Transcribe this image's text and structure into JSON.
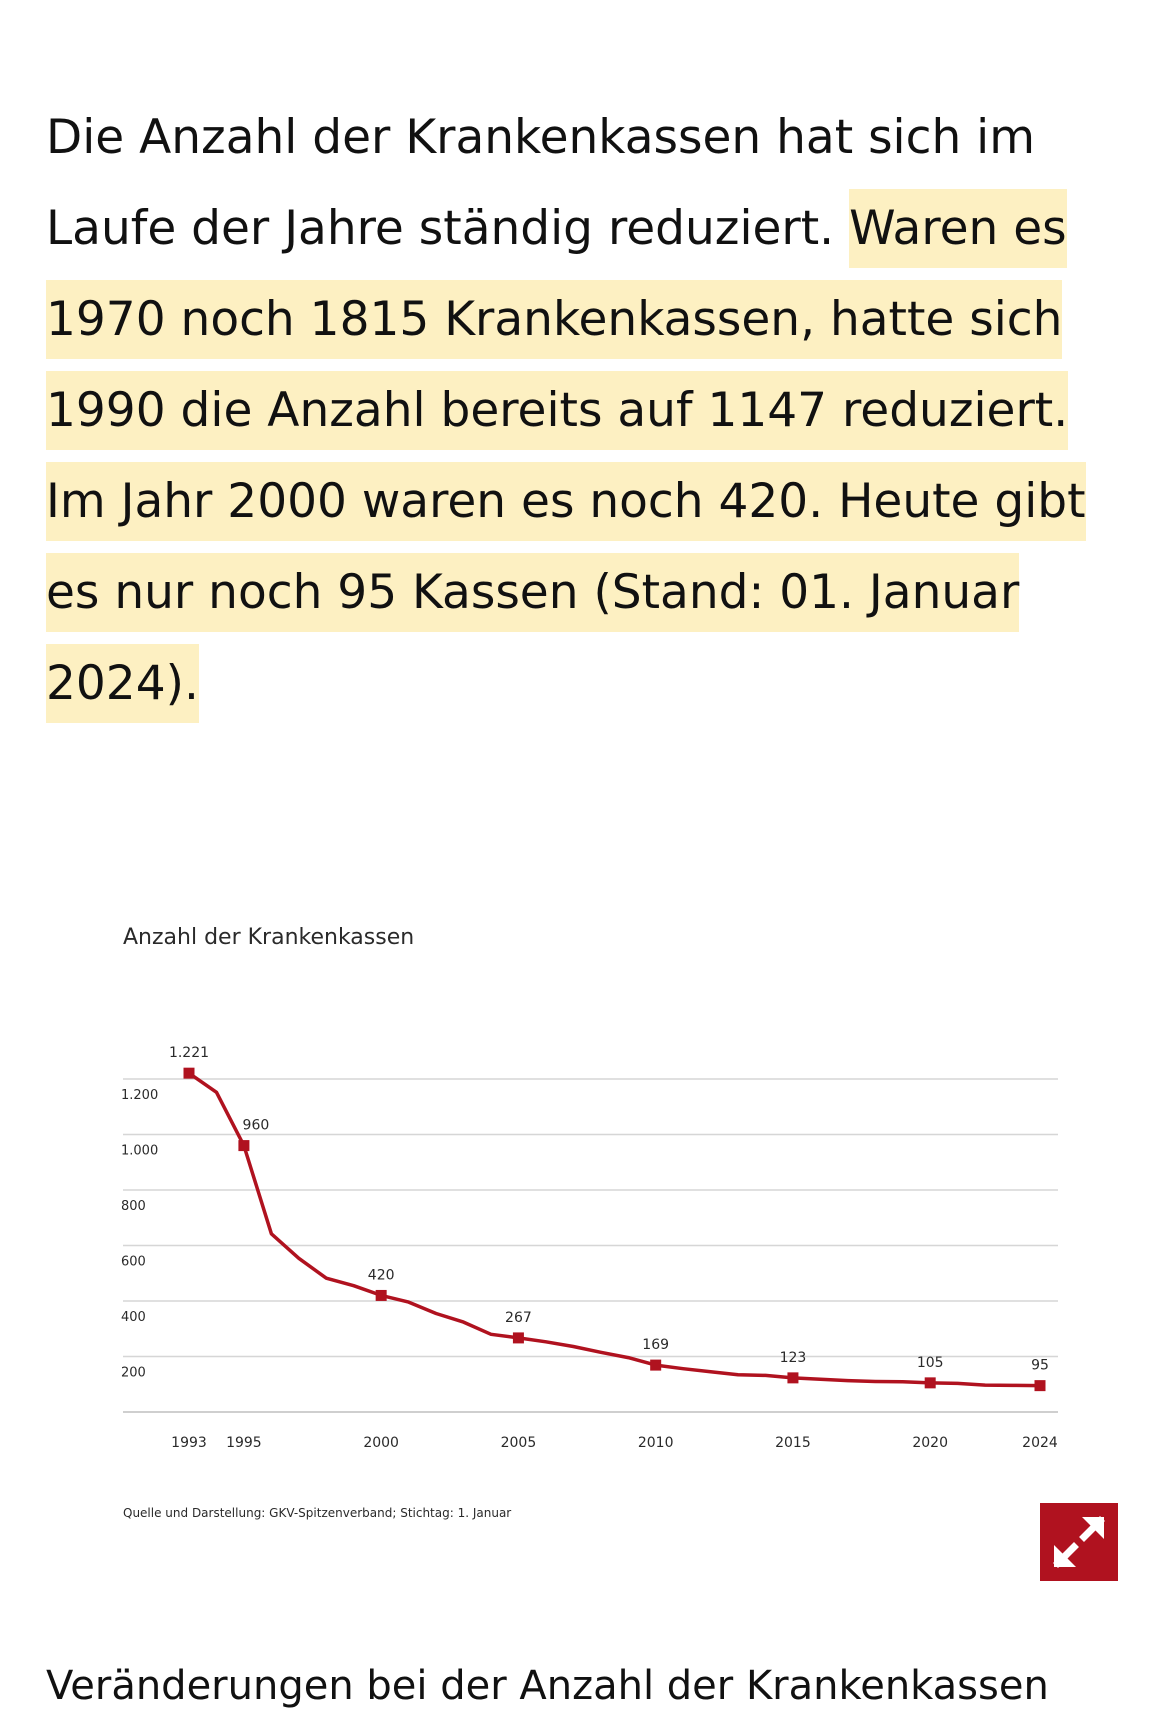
{
  "article": {
    "text_plain": "Die Anzahl der Krankenkassen hat sich im Laufe der Jahre ständig reduziert. ",
    "text_highlighted": "Waren es 1970 noch 1815 Krankenkassen, hatte sich 1990 die Anzahl bereits auf 1147 reduziert. Im Jahr 2000 waren es noch 420. Heute gibt es nur noch 95 Kassen (Stand: 01. Januar 2024)."
  },
  "chart_data": {
    "type": "line",
    "title": "Anzahl der Krankenkassen",
    "source": "Quelle und Darstellung: GKV-Spitzenverband; Stichtag: 1. Januar",
    "xlim": [
      1993,
      2024
    ],
    "ylim": [
      0,
      1300
    ],
    "yticks": [
      200,
      400,
      600,
      800,
      1000,
      1200
    ],
    "ytick_labels": [
      "200",
      "400",
      "600",
      "800",
      "1.000",
      "1.200"
    ],
    "xtick_years": [
      1993,
      1995,
      2000,
      2005,
      2010,
      2015,
      2020,
      2024
    ],
    "xtick_labels": [
      "1993",
      "1995",
      "2000",
      "2005",
      "2010",
      "2015",
      "2020",
      "2024"
    ],
    "series": [
      {
        "name": "Anzahl der Krankenkassen",
        "color": "#b0121f",
        "x": [
          1993,
          1994,
          1995,
          1996,
          1997,
          1998,
          1999,
          2000,
          2001,
          2002,
          2003,
          2004,
          2005,
          2006,
          2007,
          2008,
          2009,
          2010,
          2011,
          2012,
          2013,
          2014,
          2015,
          2016,
          2017,
          2018,
          2019,
          2020,
          2021,
          2022,
          2023,
          2024
        ],
        "y": [
          1221,
          1152,
          960,
          642,
          554,
          482,
          455,
          420,
          396,
          355,
          324,
          280,
          267,
          253,
          236,
          215,
          196,
          169,
          156,
          145,
          134,
          132,
          123,
          118,
          113,
          110,
          109,
          105,
          103,
          97,
          96,
          95
        ]
      }
    ],
    "labeled_points": [
      {
        "x": 1993,
        "y": 1221,
        "label": "1.221"
      },
      {
        "x": 1995,
        "y": 960,
        "label": "960"
      },
      {
        "x": 2000,
        "y": 420,
        "label": "420"
      },
      {
        "x": 2005,
        "y": 267,
        "label": "267"
      },
      {
        "x": 2010,
        "y": 169,
        "label": "169"
      },
      {
        "x": 2015,
        "y": 123,
        "label": "123"
      },
      {
        "x": 2020,
        "y": 105,
        "label": "105"
      },
      {
        "x": 2024,
        "y": 95,
        "label": "95"
      }
    ]
  },
  "controls": {
    "expand_icon": "expand-arrows-icon",
    "accent_color": "#b0121f"
  },
  "section": {
    "heading": "Veränderungen bei der Anzahl der Krankenkassen"
  }
}
